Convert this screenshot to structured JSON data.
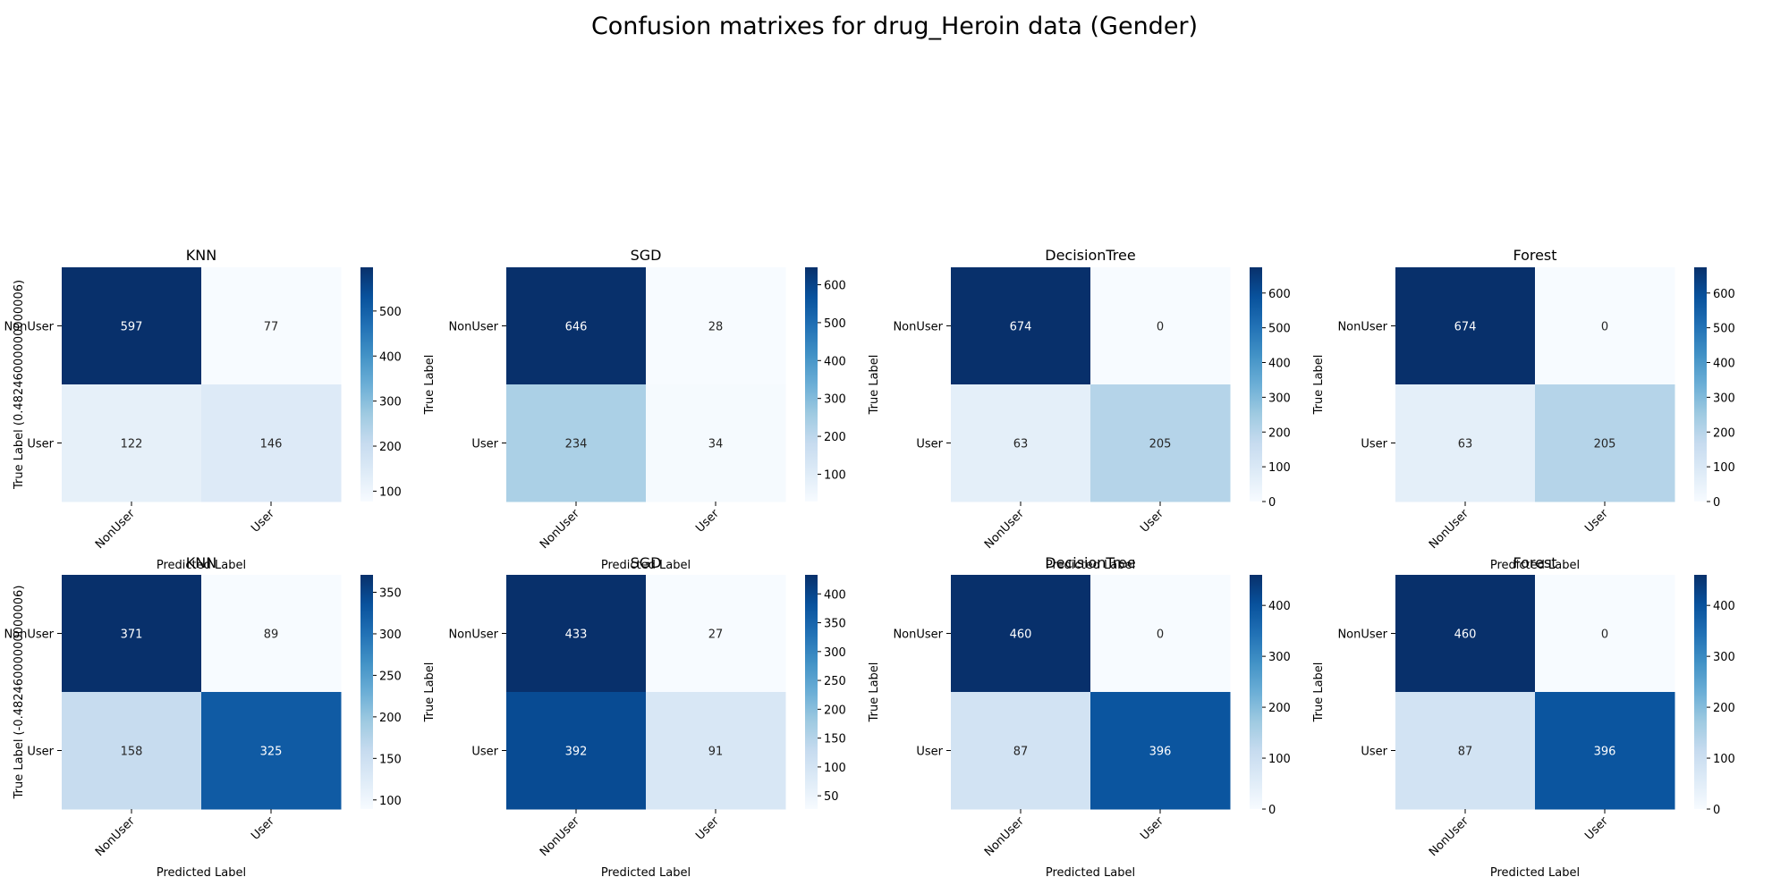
{
  "title": "Confusion matrixes for drug_Heroin data (Gender)",
  "colormap": "Blues",
  "colors": {
    "low": "#f7fbff",
    "high": "#08306b"
  },
  "chart_data": [
    {
      "type": "heatmap",
      "title": "KNN",
      "xlabel": "Predicted Label",
      "ylabel": "True Label (0.48246000000000006)",
      "x_categories": [
        "NonUser",
        "User"
      ],
      "y_categories": [
        "NonUser",
        "User"
      ],
      "values": [
        [
          597,
          77
        ],
        [
          122,
          146
        ]
      ],
      "colorbar_ticks": [
        100,
        200,
        300,
        400,
        500
      ]
    },
    {
      "type": "heatmap",
      "title": "SGD",
      "xlabel": "Predicted Label",
      "ylabel": "True Label",
      "x_categories": [
        "NonUser",
        "User"
      ],
      "y_categories": [
        "NonUser",
        "User"
      ],
      "values": [
        [
          646,
          28
        ],
        [
          234,
          34
        ]
      ],
      "colorbar_ticks": [
        100,
        200,
        300,
        400,
        500,
        600
      ]
    },
    {
      "type": "heatmap",
      "title": "DecisionTree",
      "xlabel": "Predicted Label",
      "ylabel": "True Label",
      "x_categories": [
        "NonUser",
        "User"
      ],
      "y_categories": [
        "NonUser",
        "User"
      ],
      "values": [
        [
          674,
          0
        ],
        [
          63,
          205
        ]
      ],
      "colorbar_ticks": [
        0,
        100,
        200,
        300,
        400,
        500,
        600
      ]
    },
    {
      "type": "heatmap",
      "title": "Forest",
      "xlabel": "Predicted Label",
      "ylabel": "True Label",
      "x_categories": [
        "NonUser",
        "User"
      ],
      "y_categories": [
        "NonUser",
        "User"
      ],
      "values": [
        [
          674,
          0
        ],
        [
          63,
          205
        ]
      ],
      "colorbar_ticks": [
        0,
        100,
        200,
        300,
        400,
        500,
        600
      ]
    },
    {
      "type": "heatmap",
      "title": "KNN",
      "xlabel": "Predicted Label",
      "ylabel": "True Label (-0.48246000000000006)",
      "x_categories": [
        "NonUser",
        "User"
      ],
      "y_categories": [
        "NonUser",
        "User"
      ],
      "values": [
        [
          371,
          89
        ],
        [
          158,
          325
        ]
      ],
      "colorbar_ticks": [
        100,
        150,
        200,
        250,
        300,
        350
      ]
    },
    {
      "type": "heatmap",
      "title": "SGD",
      "xlabel": "Predicted Label",
      "ylabel": "True Label",
      "x_categories": [
        "NonUser",
        "User"
      ],
      "y_categories": [
        "NonUser",
        "User"
      ],
      "values": [
        [
          433,
          27
        ],
        [
          392,
          91
        ]
      ],
      "colorbar_ticks": [
        50,
        100,
        150,
        200,
        250,
        300,
        350,
        400
      ]
    },
    {
      "type": "heatmap",
      "title": "DecisionTree",
      "xlabel": "Predicted Label",
      "ylabel": "True Label",
      "x_categories": [
        "NonUser",
        "User"
      ],
      "y_categories": [
        "NonUser",
        "User"
      ],
      "values": [
        [
          460,
          0
        ],
        [
          87,
          396
        ]
      ],
      "colorbar_ticks": [
        0,
        100,
        200,
        300,
        400
      ]
    },
    {
      "type": "heatmap",
      "title": "Forest",
      "xlabel": "Predicted Label",
      "ylabel": "True Label",
      "x_categories": [
        "NonUser",
        "User"
      ],
      "y_categories": [
        "NonUser",
        "User"
      ],
      "values": [
        [
          460,
          0
        ],
        [
          87,
          396
        ]
      ],
      "colorbar_ticks": [
        0,
        100,
        200,
        300,
        400
      ]
    }
  ]
}
